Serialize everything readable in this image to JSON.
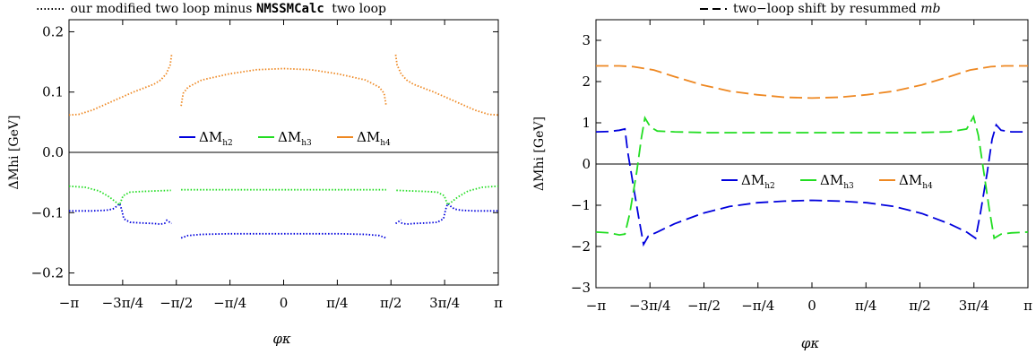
{
  "chart_data": [
    {
      "type": "line",
      "title_prefix": "our modified two loop minus",
      "title_code": "NMSSMCalc",
      "title_suffix": "two loop",
      "xlabel": "φκ",
      "ylabel": "ΔMhi [GeV]",
      "xlim": [
        -3.1416,
        3.1416
      ],
      "ylim": [
        -0.22,
        0.22
      ],
      "yticks": [
        -0.2,
        -0.1,
        0.0,
        0.1,
        0.2
      ],
      "ytick_labels": [
        "−0.2",
        "−0.1",
        "0.0",
        "0.1",
        "0.2"
      ],
      "xticks": [
        -3.1416,
        -2.3562,
        -1.5708,
        -0.7854,
        0,
        0.7854,
        1.5708,
        2.3562,
        3.1416
      ],
      "xtick_labels": [
        "−π",
        "−3π/4",
        "−π/2",
        "−π/4",
        "0",
        "π/4",
        "π/2",
        "3π/4",
        "π"
      ],
      "line_style": "dotted",
      "legend": [
        {
          "name": "ΔM",
          "sub": "h2",
          "color": "#0000dd"
        },
        {
          "name": "ΔM",
          "sub": "h3",
          "color": "#22dd22"
        },
        {
          "name": "ΔM",
          "sub": "h4",
          "color": "#ee8822"
        }
      ],
      "series": [
        {
          "name": "h2",
          "color": "#0000dd",
          "segments": [
            [
              [
                -3.1416,
                -0.097
              ],
              [
                -2.8,
                -0.097
              ],
              [
                -2.6,
                -0.096
              ],
              [
                -2.5,
                -0.094
              ],
              [
                -2.45,
                -0.09
              ],
              [
                -2.4,
                -0.085
              ],
              [
                -2.37,
                -0.095
              ],
              [
                -2.34,
                -0.11
              ],
              [
                -2.25,
                -0.116
              ],
              [
                -2.1,
                -0.117
              ],
              [
                -1.9,
                -0.118
              ],
              [
                -1.8,
                -0.119
              ],
              [
                -1.72,
                -0.117
              ]
            ],
            [
              [
                -1.72,
                -0.112
              ],
              [
                -1.64,
                -0.118
              ]
            ],
            [
              [
                -1.5,
                -0.142
              ],
              [
                -1.4,
                -0.138
              ],
              [
                -1.2,
                -0.136
              ],
              [
                -0.8,
                -0.135
              ],
              [
                0,
                -0.135
              ],
              [
                0.8,
                -0.135
              ],
              [
                1.2,
                -0.136
              ],
              [
                1.4,
                -0.138
              ],
              [
                1.5,
                -0.142
              ]
            ],
            [
              [
                1.64,
                -0.118
              ],
              [
                1.72,
                -0.112
              ]
            ],
            [
              [
                1.72,
                -0.117
              ],
              [
                1.8,
                -0.119
              ],
              [
                1.9,
                -0.118
              ],
              [
                2.1,
                -0.117
              ],
              [
                2.25,
                -0.116
              ],
              [
                2.34,
                -0.11
              ],
              [
                2.37,
                -0.095
              ],
              [
                2.4,
                -0.085
              ],
              [
                2.45,
                -0.09
              ],
              [
                2.5,
                -0.094
              ],
              [
                2.6,
                -0.096
              ],
              [
                2.8,
                -0.097
              ],
              [
                3.1416,
                -0.097
              ]
            ]
          ]
        },
        {
          "name": "h3",
          "color": "#22dd22",
          "segments": [
            [
              [
                -3.1416,
                -0.056
              ],
              [
                -2.9,
                -0.058
              ],
              [
                -2.7,
                -0.064
              ],
              [
                -2.55,
                -0.074
              ],
              [
                -2.45,
                -0.083
              ],
              [
                -2.4,
                -0.087
              ],
              [
                -2.35,
                -0.072
              ],
              [
                -2.25,
                -0.066
              ],
              [
                -2.1,
                -0.065
              ],
              [
                -1.9,
                -0.064
              ],
              [
                -1.65,
                -0.063
              ]
            ],
            [
              [
                -1.5,
                -0.062
              ],
              [
                -1.0,
                -0.062
              ],
              [
                0,
                -0.062
              ],
              [
                1.0,
                -0.062
              ],
              [
                1.5,
                -0.062
              ]
            ],
            [
              [
                1.65,
                -0.063
              ],
              [
                1.9,
                -0.064
              ],
              [
                2.1,
                -0.065
              ],
              [
                2.25,
                -0.066
              ],
              [
                2.35,
                -0.072
              ],
              [
                2.4,
                -0.087
              ],
              [
                2.45,
                -0.083
              ],
              [
                2.55,
                -0.074
              ],
              [
                2.7,
                -0.064
              ],
              [
                2.9,
                -0.058
              ],
              [
                3.1416,
                -0.056
              ]
            ]
          ]
        },
        {
          "name": "h4",
          "color": "#ee8822",
          "segments": [
            [
              [
                -3.1416,
                0.062
              ],
              [
                -3.0,
                0.063
              ],
              [
                -2.8,
                0.07
              ],
              [
                -2.5,
                0.085
              ],
              [
                -2.2,
                0.1
              ],
              [
                -1.9,
                0.113
              ],
              [
                -1.8,
                0.12
              ],
              [
                -1.72,
                0.13
              ],
              [
                -1.66,
                0.145
              ],
              [
                -1.64,
                0.162
              ]
            ],
            [
              [
                -1.5,
                0.077
              ],
              [
                -1.47,
                0.098
              ],
              [
                -1.4,
                0.108
              ],
              [
                -1.2,
                0.12
              ],
              [
                -0.8,
                0.13
              ],
              [
                -0.4,
                0.137
              ],
              [
                0,
                0.139
              ],
              [
                0.4,
                0.137
              ],
              [
                0.8,
                0.13
              ],
              [
                1.2,
                0.12
              ],
              [
                1.4,
                0.108
              ],
              [
                1.47,
                0.098
              ],
              [
                1.5,
                0.077
              ]
            ],
            [
              [
                1.64,
                0.162
              ],
              [
                1.66,
                0.145
              ],
              [
                1.72,
                0.13
              ],
              [
                1.8,
                0.12
              ],
              [
                1.9,
                0.113
              ],
              [
                2.2,
                0.1
              ],
              [
                2.5,
                0.085
              ],
              [
                2.8,
                0.07
              ],
              [
                3.0,
                0.063
              ],
              [
                3.1416,
                0.062
              ]
            ]
          ]
        }
      ]
    },
    {
      "type": "line",
      "title_prefix": "two−loop shift by resummed",
      "title_var": "mb",
      "xlabel": "φκ",
      "ylabel": "ΔMhi [GeV]",
      "xlim": [
        -3.1416,
        3.1416
      ],
      "ylim": [
        -3,
        3.5
      ],
      "yticks": [
        -3,
        -2,
        -1,
        0,
        1,
        2,
        3
      ],
      "ytick_labels": [
        "−3",
        "−2",
        "−1",
        "0",
        "1",
        "2",
        "3"
      ],
      "xticks": [
        -3.1416,
        -2.3562,
        -1.5708,
        -0.7854,
        0,
        0.7854,
        1.5708,
        2.3562,
        3.1416
      ],
      "xtick_labels": [
        "−π",
        "−3π/4",
        "−π/2",
        "−π/4",
        "0",
        "π/4",
        "π/2",
        "3π/4",
        "π"
      ],
      "line_style": "dashed",
      "legend": [
        {
          "name": "ΔM",
          "sub": "h2",
          "color": "#0000dd"
        },
        {
          "name": "ΔM",
          "sub": "h3",
          "color": "#22dd22"
        },
        {
          "name": "ΔM",
          "sub": "h4",
          "color": "#ee8822"
        }
      ],
      "series": [
        {
          "name": "h2",
          "color": "#0000dd",
          "segments": [
            [
              [
                -3.1416,
                0.78
              ],
              [
                -2.95,
                0.79
              ],
              [
                -2.8,
                0.82
              ],
              [
                -2.72,
                0.85
              ],
              [
                -2.68,
                0.3
              ],
              [
                -2.6,
                -0.5
              ],
              [
                -2.52,
                -1.3
              ],
              [
                -2.45,
                -1.95
              ],
              [
                -2.38,
                -1.75
              ],
              [
                -2.25,
                -1.65
              ],
              [
                -2.0,
                -1.45
              ],
              [
                -1.6,
                -1.2
              ],
              [
                -1.2,
                -1.03
              ],
              [
                -0.8,
                -0.94
              ],
              [
                -0.4,
                -0.9
              ],
              [
                0,
                -0.88
              ],
              [
                0.4,
                -0.9
              ],
              [
                0.8,
                -0.94
              ],
              [
                1.2,
                -1.03
              ],
              [
                1.6,
                -1.2
              ],
              [
                2.0,
                -1.45
              ],
              [
                2.25,
                -1.65
              ],
              [
                2.38,
                -1.8
              ],
              [
                2.45,
                -1.2
              ],
              [
                2.55,
                -0.2
              ],
              [
                2.62,
                0.6
              ],
              [
                2.68,
                0.95
              ],
              [
                2.75,
                0.82
              ],
              [
                2.9,
                0.78
              ],
              [
                3.1416,
                0.78
              ]
            ]
          ]
        },
        {
          "name": "h3",
          "color": "#22dd22",
          "segments": [
            [
              [
                -3.1416,
                -1.65
              ],
              [
                -2.95,
                -1.67
              ],
              [
                -2.8,
                -1.72
              ],
              [
                -2.72,
                -1.7
              ],
              [
                -2.65,
                -1.2
              ],
              [
                -2.55,
                -0.2
              ],
              [
                -2.48,
                0.65
              ],
              [
                -2.43,
                1.12
              ],
              [
                -2.35,
                0.9
              ],
              [
                -2.25,
                0.8
              ],
              [
                -2.0,
                0.78
              ],
              [
                -1.5,
                0.76
              ],
              [
                -1.0,
                0.76
              ],
              [
                0,
                0.76
              ],
              [
                1.0,
                0.76
              ],
              [
                1.5,
                0.76
              ],
              [
                2.0,
                0.78
              ],
              [
                2.25,
                0.85
              ],
              [
                2.35,
                1.15
              ],
              [
                2.42,
                0.7
              ],
              [
                2.5,
                -0.2
              ],
              [
                2.58,
                -1.1
              ],
              [
                2.65,
                -1.8
              ],
              [
                2.75,
                -1.7
              ],
              [
                2.9,
                -1.67
              ],
              [
                3.1416,
                -1.65
              ]
            ]
          ]
        },
        {
          "name": "h4",
          "color": "#ee8822",
          "segments": [
            [
              [
                -3.1416,
                2.38
              ],
              [
                -2.8,
                2.38
              ],
              [
                -2.6,
                2.36
              ],
              [
                -2.3,
                2.28
              ],
              [
                -2.0,
                2.12
              ],
              [
                -1.6,
                1.92
              ],
              [
                -1.2,
                1.77
              ],
              [
                -0.8,
                1.68
              ],
              [
                -0.4,
                1.62
              ],
              [
                0,
                1.6
              ],
              [
                0.4,
                1.62
              ],
              [
                0.8,
                1.68
              ],
              [
                1.2,
                1.77
              ],
              [
                1.6,
                1.92
              ],
              [
                2.0,
                2.12
              ],
              [
                2.3,
                2.28
              ],
              [
                2.6,
                2.36
              ],
              [
                2.8,
                2.38
              ],
              [
                3.1416,
                2.38
              ]
            ]
          ]
        }
      ]
    }
  ]
}
